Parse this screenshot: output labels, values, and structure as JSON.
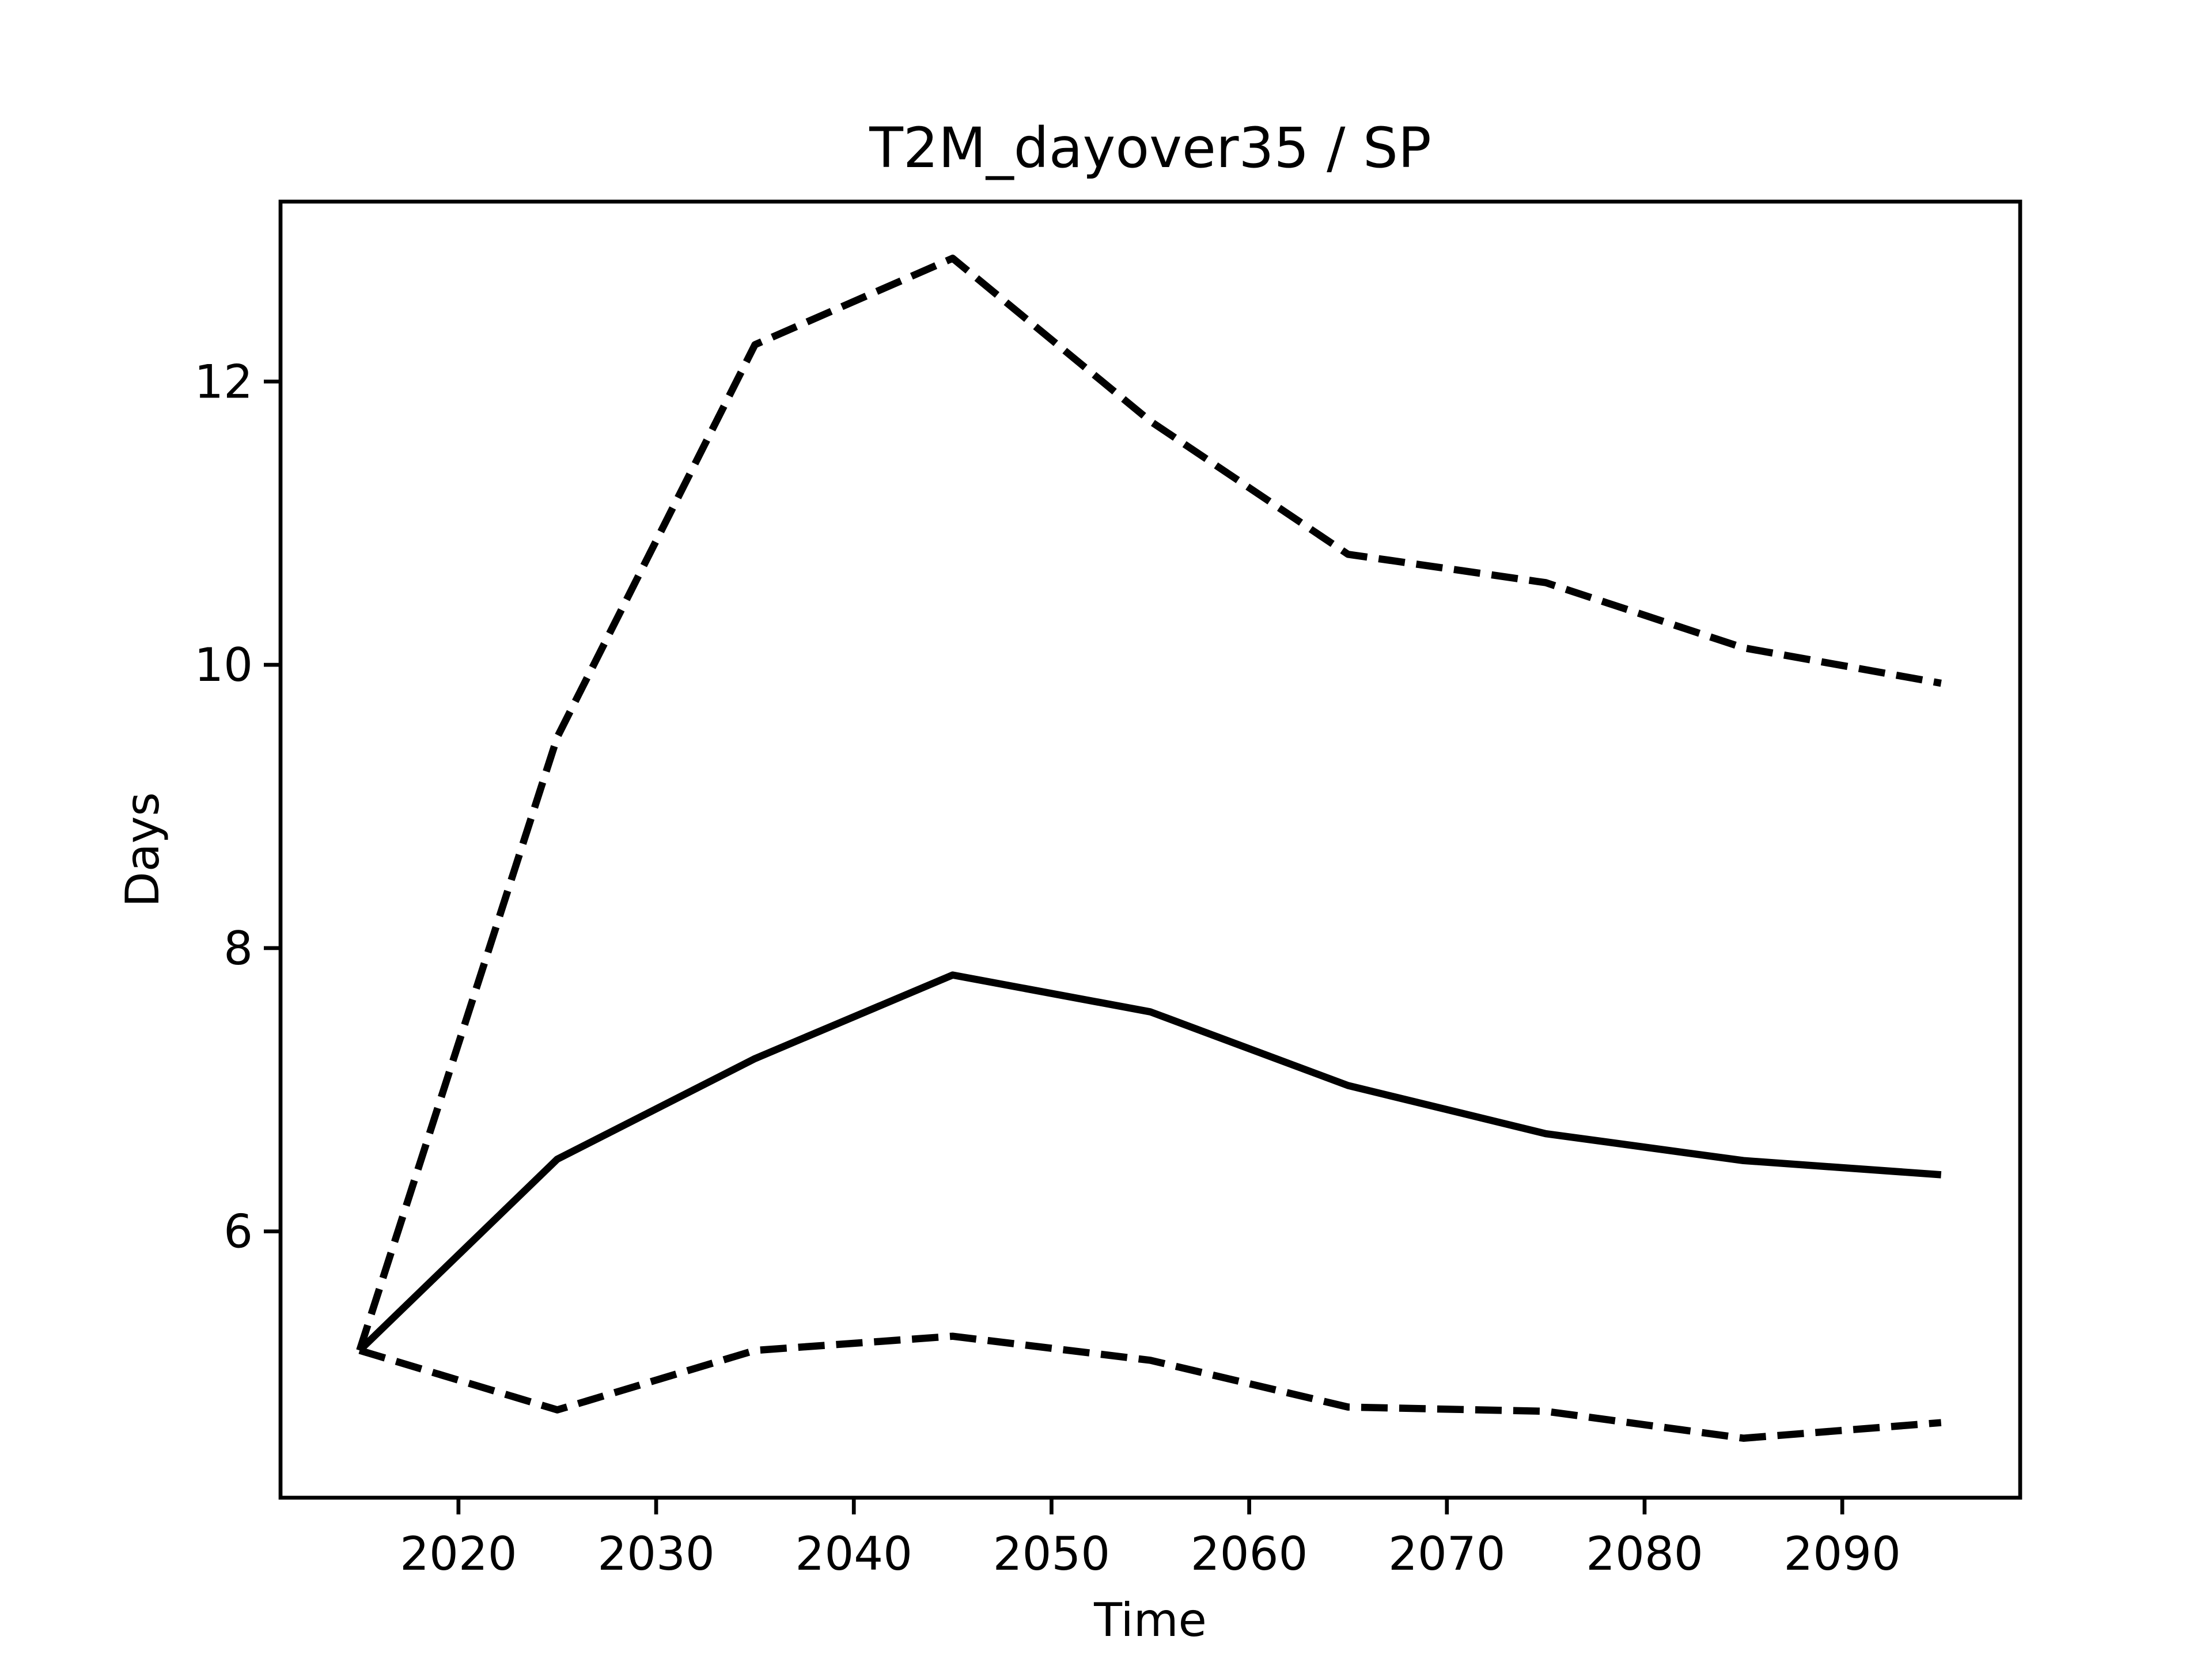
{
  "chart_data": {
    "type": "line",
    "title": "T2M_dayover35 / SP",
    "xlabel": "Time",
    "ylabel": "Days",
    "x": [
      2015,
      2025,
      2035,
      2045,
      2055,
      2065,
      2075,
      2085,
      2095
    ],
    "series": [
      {
        "color": "#000000",
        "linestyle": "solid",
        "values": [
          5.16,
          6.51,
          7.22,
          7.81,
          7.55,
          7.03,
          6.69,
          6.5,
          6.4
        ]
      },
      {
        "color": "#000000",
        "linestyle": "dashed",
        "values": [
          5.16,
          9.49,
          12.26,
          12.87,
          11.72,
          10.78,
          10.58,
          10.12,
          9.87
        ]
      },
      {
        "color": "#000000",
        "linestyle": "dashed",
        "values": [
          5.16,
          4.74,
          5.16,
          5.26,
          5.09,
          4.76,
          4.73,
          4.54,
          4.65
        ]
      }
    ],
    "xlim": [
      2011,
      2099
    ],
    "xticks": [
      2020,
      2030,
      2040,
      2050,
      2060,
      2070,
      2080,
      2090
    ],
    "ylim": [
      4.12,
      13.27
    ],
    "yticks": [
      6,
      8,
      10,
      12
    ],
    "grid": false
  }
}
